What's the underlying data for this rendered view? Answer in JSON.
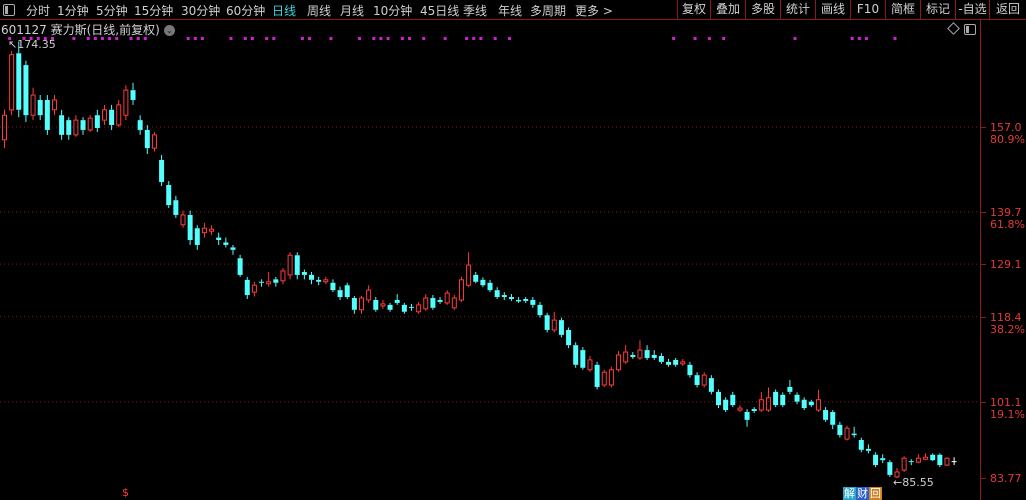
{
  "toolbar": {
    "left_items": [
      {
        "label": "分时",
        "active": false
      },
      {
        "label": "1分钟",
        "active": false
      },
      {
        "label": "5分钟",
        "active": false
      },
      {
        "label": "15分钟",
        "active": false
      },
      {
        "label": "30分钟",
        "active": false
      },
      {
        "label": "60分钟",
        "active": false
      },
      {
        "label": "日线",
        "active": true
      },
      {
        "label": "周线",
        "active": false
      },
      {
        "label": "月线",
        "active": false
      },
      {
        "label": "10分钟",
        "active": false
      },
      {
        "label": "45日线",
        "active": false
      },
      {
        "label": "季线",
        "active": false
      },
      {
        "label": "年线",
        "active": false
      },
      {
        "label": "多周期",
        "active": false
      },
      {
        "label": "更多 >",
        "active": false
      }
    ],
    "right_items": [
      "复权",
      "叠加",
      "多股",
      "统计",
      "画线",
      "F10",
      "简框",
      "标记",
      "-自选",
      "返回"
    ]
  },
  "chart_header": {
    "title": "601127 赛力斯(日线,前复权)",
    "menu_icon": "chevron-down-circle-icon"
  },
  "colors": {
    "up": "#ff3b3b",
    "down": "#54ffff",
    "axis": "#8b1a1a",
    "event_marker": "#d020d0",
    "active_tab": "#38d6e0"
  },
  "annotations": {
    "high": "174.35",
    "low": "85.55"
  },
  "bottom_buttons": [
    {
      "label": "解",
      "color": "#2aa6c8"
    },
    {
      "label": "财",
      "color": "#2a5ec8"
    },
    {
      "label": "回",
      "color": "#d08020"
    }
  ],
  "dividend_marker": "$",
  "chart_data": {
    "type": "candlestick",
    "ylim": [
      83.77,
      179
    ],
    "grid": "dotted horizontal at labeled levels",
    "y_labels": [
      {
        "price": 157.0,
        "text": "157.0",
        "pct": "80.9%"
      },
      {
        "price": 139.7,
        "text": "139.7",
        "pct": "61.8%"
      },
      {
        "price": 129.1,
        "text": "129.1",
        "pct": ""
      },
      {
        "price": 118.4,
        "text": "118.4",
        "pct": "38.2%"
      },
      {
        "price": 101.1,
        "text": "101.1",
        "pct": "19.1%"
      },
      {
        "price": 83.77,
        "text": "83.77",
        "pct": ""
      }
    ],
    "event_marker_indices": [
      1,
      3,
      4,
      5,
      6,
      7,
      10,
      12,
      13,
      14,
      15,
      16,
      18,
      19,
      20,
      26,
      27,
      28,
      32,
      34,
      35,
      37,
      38,
      42,
      43,
      46,
      50,
      52,
      53,
      54,
      56,
      57,
      59,
      62,
      65,
      66,
      67,
      69,
      71,
      94,
      97,
      99,
      101,
      111,
      119,
      120,
      121,
      125
    ],
    "ohlc_fields": [
      "open",
      "high",
      "low",
      "close"
    ],
    "candles": [
      [
        154.4,
        160.5,
        152.7,
        159.4
      ],
      [
        160.5,
        172.5,
        159.4,
        171.7
      ],
      [
        172,
        174.35,
        159,
        160.5
      ],
      [
        169.6,
        170.5,
        158,
        159.4
      ],
      [
        159.4,
        165,
        158.4,
        163.5
      ],
      [
        162.5,
        163.5,
        158.4,
        159.4
      ],
      [
        162.5,
        163.5,
        155.4,
        156.4
      ],
      [
        160.5,
        163.5,
        159.4,
        162.5
      ],
      [
        159.4,
        160.5,
        154.4,
        155.4
      ],
      [
        158.4,
        159,
        154.4,
        155.4
      ],
      [
        155.4,
        159.4,
        155,
        158.4
      ],
      [
        158.4,
        159,
        155.4,
        156.4
      ],
      [
        156.4,
        159.4,
        156,
        158.8
      ],
      [
        159.4,
        160.5,
        156,
        156.8
      ],
      [
        158.4,
        161.5,
        157.4,
        160.5
      ],
      [
        160.5,
        161.5,
        156.4,
        157.4
      ],
      [
        157.4,
        162.5,
        157,
        161.5
      ],
      [
        159.4,
        165.5,
        158.4,
        164.5
      ],
      [
        164.5,
        166,
        161.5,
        162.5
      ],
      [
        158.4,
        159.4,
        155.4,
        156.4
      ],
      [
        156.4,
        157.4,
        151.5,
        152.7
      ],
      [
        152.7,
        156,
        152,
        155.4
      ],
      [
        150.3,
        151.3,
        145,
        145.8
      ],
      [
        145.2,
        146,
        140.5,
        141.1
      ],
      [
        142.1,
        143,
        138.5,
        139.1
      ],
      [
        137.1,
        140,
        136.5,
        139.1
      ],
      [
        139.1,
        140,
        133,
        134
      ],
      [
        136.4,
        137,
        132,
        133
      ],
      [
        135.5,
        137.5,
        134.5,
        136.4
      ],
      [
        135.8,
        137,
        135,
        136.2
      ],
      [
        134.5,
        135.5,
        133,
        134
      ],
      [
        133.5,
        134.5,
        132.5,
        133
      ],
      [
        132.5,
        133,
        131,
        132
      ],
      [
        130.3,
        131,
        126.5,
        126.9
      ],
      [
        125.9,
        126.5,
        122,
        122.8
      ],
      [
        123.4,
        125.5,
        122.5,
        124.8
      ],
      [
        125.5,
        126,
        124.5,
        125.3
      ],
      [
        125.1,
        127.5,
        124.5,
        125.5
      ],
      [
        126,
        126.5,
        124.5,
        125.3
      ],
      [
        125.7,
        128.3,
        125,
        127.7
      ],
      [
        126.9,
        131.5,
        126,
        130.9
      ],
      [
        130.9,
        131.5,
        126,
        126.9
      ],
      [
        127.5,
        128,
        126,
        126.9
      ],
      [
        126.9,
        127.5,
        125,
        125.9
      ],
      [
        125.9,
        126.5,
        124.8,
        125.5
      ],
      [
        125.5,
        126.5,
        125,
        125.9
      ],
      [
        125.3,
        126,
        123.4,
        123.8
      ],
      [
        123.8,
        124.5,
        121.8,
        122.4
      ],
      [
        124.8,
        125.3,
        122,
        122.4
      ],
      [
        122.2,
        122.6,
        119,
        119.8
      ],
      [
        119.8,
        122.6,
        119,
        122.2
      ],
      [
        121.8,
        124.8,
        121.2,
        123.8
      ],
      [
        121.8,
        122.4,
        119.4,
        119.8
      ],
      [
        120.6,
        121.8,
        120,
        121
      ],
      [
        120.8,
        121.2,
        119.4,
        119.8
      ],
      [
        121.8,
        123,
        120.8,
        121.2
      ],
      [
        120.8,
        121.2,
        119,
        119.4
      ],
      [
        120.4,
        121,
        119.6,
        120.2
      ],
      [
        119.4,
        121.4,
        119,
        120.8
      ],
      [
        120,
        123,
        119.6,
        122.2
      ],
      [
        122.2,
        122.8,
        119.8,
        120.2
      ],
      [
        121.8,
        122.4,
        121,
        121.4
      ],
      [
        121.2,
        123.8,
        120.8,
        123.2
      ],
      [
        120.2,
        122.8,
        119.8,
        122.2
      ],
      [
        121.8,
        126.5,
        121.4,
        125.9
      ],
      [
        124.8,
        131.5,
        124.4,
        128.9
      ],
      [
        126.9,
        127.5,
        125.2,
        125.5
      ],
      [
        125.9,
        126.4,
        124.4,
        124.8
      ],
      [
        125.3,
        125.9,
        123.4,
        123.8
      ],
      [
        123.8,
        124.4,
        122,
        122.4
      ],
      [
        122.8,
        123.4,
        121.8,
        122.4
      ],
      [
        122.4,
        123,
        121.6,
        122
      ],
      [
        121.8,
        122.4,
        121.2,
        121.5
      ],
      [
        122,
        122.4,
        121.2,
        121.6
      ],
      [
        121.8,
        122.4,
        120.2,
        120.8
      ],
      [
        120.8,
        121.4,
        118.2,
        118.7
      ],
      [
        118.7,
        119.2,
        115.2,
        115.7
      ],
      [
        115.7,
        119.4,
        115.2,
        117.7
      ],
      [
        117.7,
        118.2,
        114.2,
        114.7
      ],
      [
        115.7,
        116.2,
        112,
        112.6
      ],
      [
        112.6,
        113.2,
        108,
        108.6
      ],
      [
        111.6,
        112.2,
        107.6,
        108
      ],
      [
        107.6,
        110.4,
        107.2,
        109.6
      ],
      [
        108.6,
        109.2,
        103.6,
        104.1
      ],
      [
        104.5,
        107.6,
        104.1,
        107.1
      ],
      [
        104.5,
        108.2,
        104,
        107.6
      ],
      [
        107.6,
        111.4,
        107.2,
        110.6
      ],
      [
        109.2,
        112.6,
        108.8,
        111.2
      ],
      [
        110.6,
        111.2,
        109.8,
        110.2
      ],
      [
        110,
        113.6,
        109.6,
        111.6
      ],
      [
        111.6,
        112.6,
        109.6,
        110
      ],
      [
        110.6,
        111.6,
        109.6,
        110
      ],
      [
        110.4,
        111,
        108.8,
        109.2
      ],
      [
        109.2,
        109.8,
        108.2,
        108.6
      ],
      [
        109.6,
        110,
        108.2,
        108.6
      ],
      [
        108.8,
        109.8,
        108.4,
        109.2
      ],
      [
        108.6,
        109.2,
        106,
        106.5
      ],
      [
        106.5,
        107.1,
        104,
        104.5
      ],
      [
        104.5,
        107.1,
        104,
        106.5
      ],
      [
        105.9,
        106.5,
        102.6,
        103.1
      ],
      [
        103.1,
        103.6,
        99.8,
        100.4
      ],
      [
        101.5,
        102,
        99,
        99.4
      ],
      [
        102.5,
        103.1,
        100,
        100.4
      ],
      [
        99.4,
        100.4,
        99,
        99.8
      ],
      [
        99,
        99.6,
        96,
        97.4
      ],
      [
        99.6,
        100,
        98.8,
        99.2
      ],
      [
        99.4,
        103.1,
        99,
        101.5
      ],
      [
        99.4,
        104,
        99,
        101.9
      ],
      [
        103.1,
        103.6,
        100,
        100.4
      ],
      [
        102.5,
        103,
        100,
        100.4
      ],
      [
        104.1,
        105.5,
        102.6,
        103.1
      ],
      [
        102.5,
        103,
        100.6,
        101.1
      ],
      [
        101.5,
        102,
        99.4,
        99.8
      ],
      [
        101.1,
        101.5,
        100,
        100.4
      ],
      [
        99.4,
        103.5,
        99,
        101.5
      ],
      [
        99.4,
        100,
        97,
        97.4
      ],
      [
        99,
        99.4,
        95.5,
        96.4
      ],
      [
        96.4,
        97,
        93.8,
        94.3
      ],
      [
        93.5,
        96.2,
        93.2,
        95.7
      ],
      [
        94.6,
        96,
        93.8,
        94.3
      ],
      [
        93.3,
        93.8,
        90.8,
        91.3
      ],
      [
        91.5,
        92.4,
        90.6,
        91.1
      ],
      [
        90.3,
        90.8,
        87.8,
        88.2
      ],
      [
        89.6,
        90.4,
        88.6,
        89.2
      ],
      [
        88.8,
        89.2,
        85.8,
        86.2
      ],
      [
        85.8,
        87.6,
        85.55,
        86.8
      ],
      [
        87.2,
        90,
        86.8,
        89.6
      ],
      [
        89,
        89.4,
        88.2,
        88.8
      ],
      [
        88.8,
        90.4,
        88.6,
        89.6
      ],
      [
        89.4,
        90.6,
        89.2,
        89.8
      ],
      [
        90.3,
        90.6,
        89,
        89.2
      ],
      [
        90.3,
        90.6,
        87.8,
        88.2
      ],
      [
        88.2,
        89.8,
        88,
        89.6
      ],
      [
        89,
        89.8,
        88.2,
        89
      ]
    ]
  }
}
